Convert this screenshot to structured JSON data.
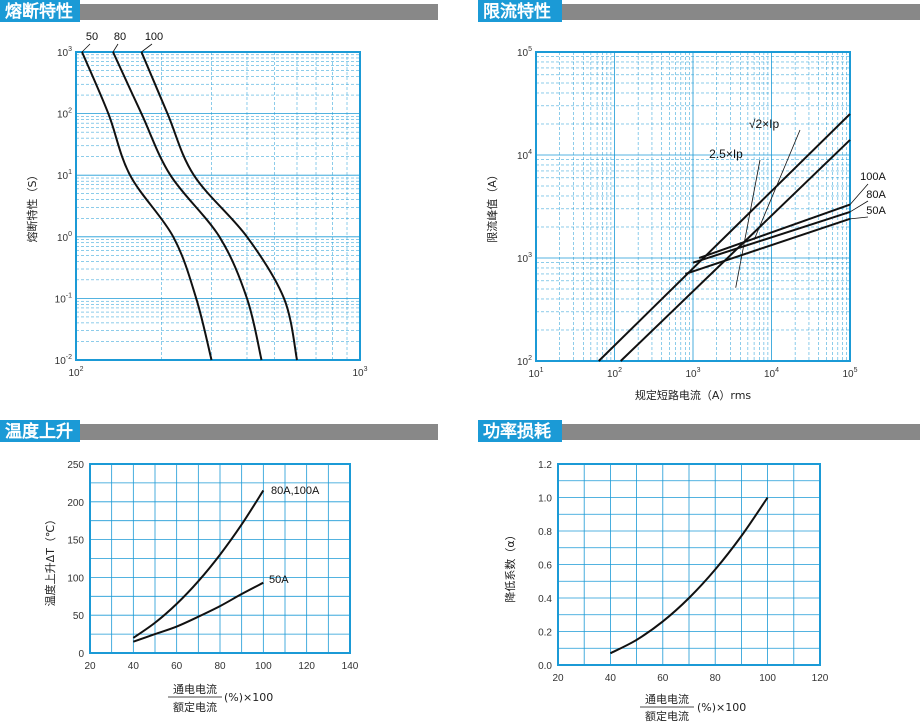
{
  "chart_data": [
    {
      "type": "line",
      "title": "熔断特性",
      "xlabel": "",
      "ylabel": "熔断特性（S）",
      "xscale": "log",
      "yscale": "log",
      "xlim": [
        100,
        1000
      ],
      "ylim": [
        0.01,
        1000
      ],
      "x_ticks": [
        {
          "base": "10",
          "exp": "2"
        },
        {
          "base": "10",
          "exp": "3"
        }
      ],
      "y_ticks": [
        {
          "base": "10",
          "exp": "-2"
        },
        {
          "base": "10",
          "exp": "-1"
        },
        {
          "base": "10",
          "exp": "0"
        },
        {
          "base": "10",
          "exp": "1"
        },
        {
          "base": "10",
          "exp": "2"
        },
        {
          "base": "10",
          "exp": "3"
        }
      ],
      "grid": true,
      "series": [
        {
          "name": "50",
          "points": [
            [
              105,
              1000
            ],
            [
              130,
              100
            ],
            [
              155,
              10
            ],
            [
              220,
              1
            ],
            [
              265,
              0.1
            ],
            [
              300,
              0.01
            ]
          ]
        },
        {
          "name": "80",
          "points": [
            [
              135,
              1000
            ],
            [
              170,
              100
            ],
            [
              215,
              10
            ],
            [
              320,
              1
            ],
            [
              400,
              0.1
            ],
            [
              450,
              0.01
            ]
          ]
        },
        {
          "name": "100",
          "points": [
            [
              170,
              1000
            ],
            [
              210,
              100
            ],
            [
              260,
              10
            ],
            [
              400,
              1
            ],
            [
              540,
              0.1
            ],
            [
              600,
              0.01
            ]
          ]
        }
      ]
    },
    {
      "type": "line",
      "title": "限流特性",
      "xlabel": "规定短路电流（A）rms",
      "ylabel": "限流峰值（A）",
      "xscale": "log",
      "yscale": "log",
      "xlim": [
        10,
        100000
      ],
      "ylim": [
        100,
        100000
      ],
      "x_ticks": [
        {
          "base": "10",
          "exp": "1"
        },
        {
          "base": "10",
          "exp": "2"
        },
        {
          "base": "10",
          "exp": "3"
        },
        {
          "base": "10",
          "exp": "4"
        },
        {
          "base": "10",
          "exp": "5"
        }
      ],
      "y_ticks": [
        {
          "base": "10",
          "exp": "2"
        },
        {
          "base": "10",
          "exp": "3"
        },
        {
          "base": "10",
          "exp": "4"
        },
        {
          "base": "10",
          "exp": "5"
        }
      ],
      "grid": true,
      "series": [
        {
          "name": "√2×Ip",
          "points": [
            [
              63,
              100
            ],
            [
              100000,
              25000
            ]
          ]
        },
        {
          "name": "2.5×Ip",
          "points": [
            [
              120,
              100
            ],
            [
              100000,
              14000
            ]
          ]
        },
        {
          "name": "100A",
          "points": [
            [
              1200,
              1000
            ],
            [
              100000,
              3300
            ]
          ]
        },
        {
          "name": "80A",
          "points": [
            [
              1000,
              900
            ],
            [
              100000,
              2800
            ]
          ]
        },
        {
          "name": "50A",
          "points": [
            [
              800,
              700
            ],
            [
              100000,
              2400
            ]
          ]
        }
      ],
      "annotations": [
        "√2×Ip",
        "2.5×Ip",
        "100A",
        "80A",
        "50A"
      ]
    },
    {
      "type": "line",
      "title": "温度上升",
      "xlabel_top": "通电电流",
      "xlabel_bottom": "额定电流",
      "xlabel_suffix": "(%)×100",
      "ylabel": "温度上升ΔT（℃）",
      "xlim": [
        20,
        140
      ],
      "ylim": [
        0,
        250
      ],
      "x_ticks": [
        20,
        40,
        60,
        80,
        100,
        120,
        140
      ],
      "y_ticks": [
        0,
        50,
        100,
        150,
        200,
        250
      ],
      "grid": true,
      "series": [
        {
          "name": "80A,100A",
          "points": [
            [
              40,
              20
            ],
            [
              50,
              40
            ],
            [
              60,
              65
            ],
            [
              70,
              95
            ],
            [
              80,
              130
            ],
            [
              90,
              170
            ],
            [
              100,
              215
            ]
          ]
        },
        {
          "name": "50A",
          "points": [
            [
              40,
              15
            ],
            [
              50,
              25
            ],
            [
              60,
              35
            ],
            [
              70,
              48
            ],
            [
              80,
              62
            ],
            [
              90,
              78
            ],
            [
              100,
              93
            ]
          ]
        }
      ]
    },
    {
      "type": "line",
      "title": "功率损耗",
      "xlabel_top": "通电电流",
      "xlabel_bottom": "额定电流",
      "xlabel_suffix": "(%)×100",
      "ylabel": "降低系数（α）",
      "xlim": [
        20,
        120
      ],
      "ylim": [
        0,
        1.2
      ],
      "x_ticks": [
        20,
        40,
        60,
        80,
        100,
        120
      ],
      "y_ticks": [
        "0.0",
        "0.2",
        "0.4",
        "0.6",
        "0.8",
        "1.0",
        "1.2"
      ],
      "grid": true,
      "series": [
        {
          "name": "",
          "points": [
            [
              40,
              0.07
            ],
            [
              50,
              0.15
            ],
            [
              60,
              0.26
            ],
            [
              70,
              0.4
            ],
            [
              80,
              0.57
            ],
            [
              90,
              0.77
            ],
            [
              100,
              1.0
            ]
          ]
        }
      ]
    }
  ]
}
